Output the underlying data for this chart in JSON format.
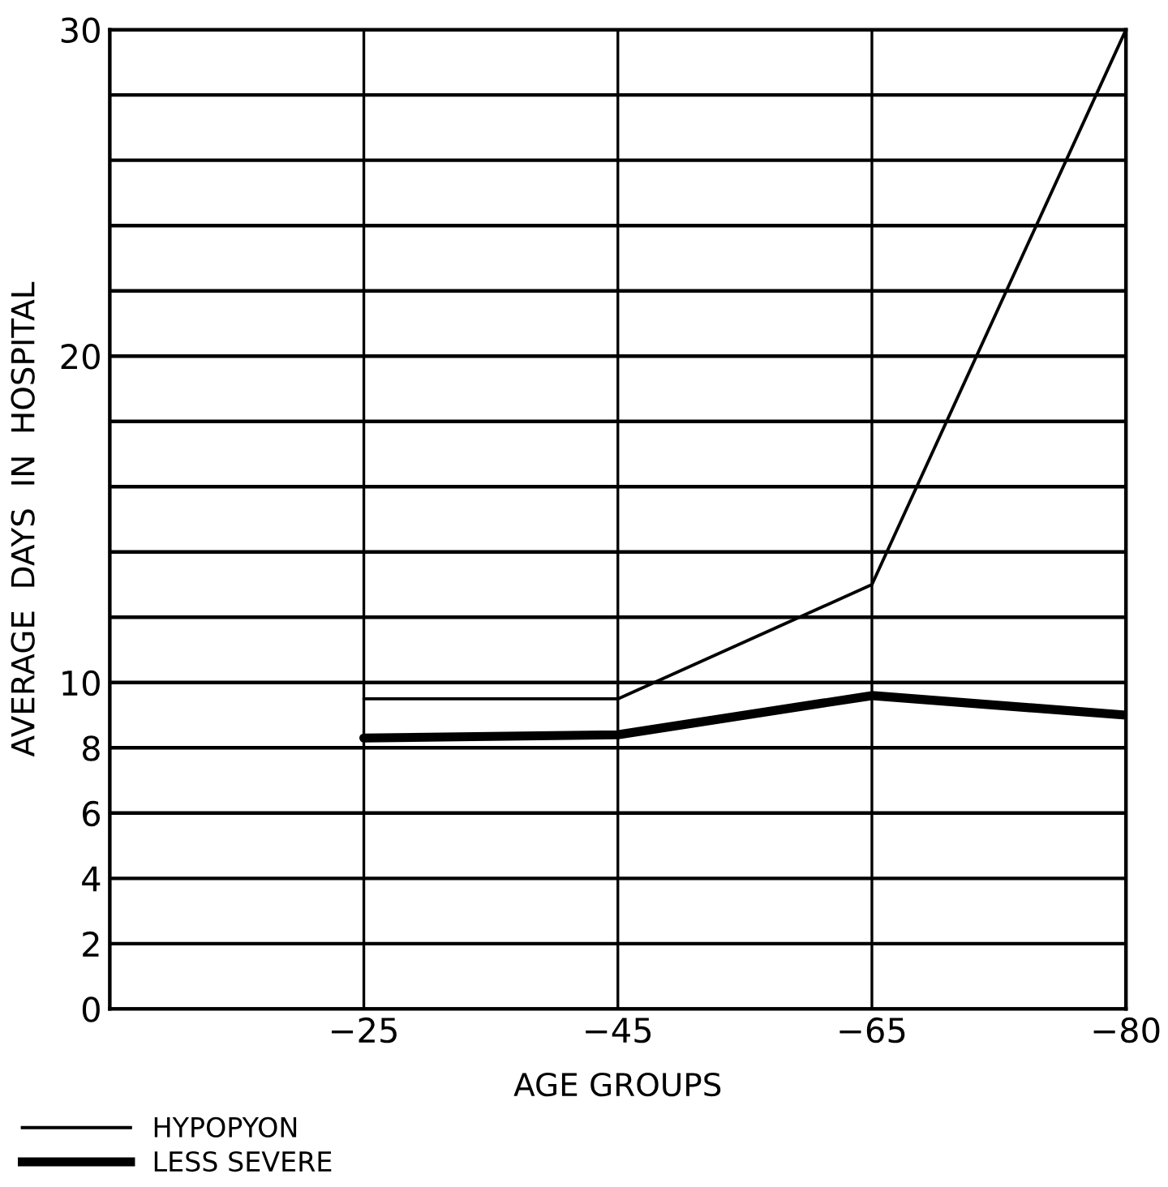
{
  "chart_data": {
    "type": "line",
    "xlabel": "AGE GROUPS",
    "ylabel": "AVERAGE  DAYS  IN  HOSPITAL",
    "categories": [
      "−25",
      "−45",
      "−65",
      "−80"
    ],
    "series": [
      {
        "name": "HYPOPYON",
        "color": "#000000",
        "values": [
          9.5,
          9.5,
          13,
          30
        ]
      },
      {
        "name": "LESS SEVERE",
        "color": "#000000",
        "values": [
          8.3,
          8.4,
          9.6,
          9.0
        ]
      }
    ],
    "ylim": [
      0,
      30
    ],
    "yticks": [
      0,
      2,
      4,
      6,
      8,
      10,
      {
        "value": 12,
        "label": null
      },
      {
        "value": 14,
        "label": null
      },
      {
        "value": 16,
        "label": null
      },
      {
        "value": 18,
        "label": null
      },
      20,
      {
        "value": 22,
        "label": null
      },
      {
        "value": 24,
        "label": null
      },
      {
        "value": 26,
        "label": null
      },
      {
        "value": 28,
        "label": null
      },
      30
    ],
    "grid": true,
    "legend": "bottom left",
    "marker": "none",
    "line_style": "solid"
  }
}
